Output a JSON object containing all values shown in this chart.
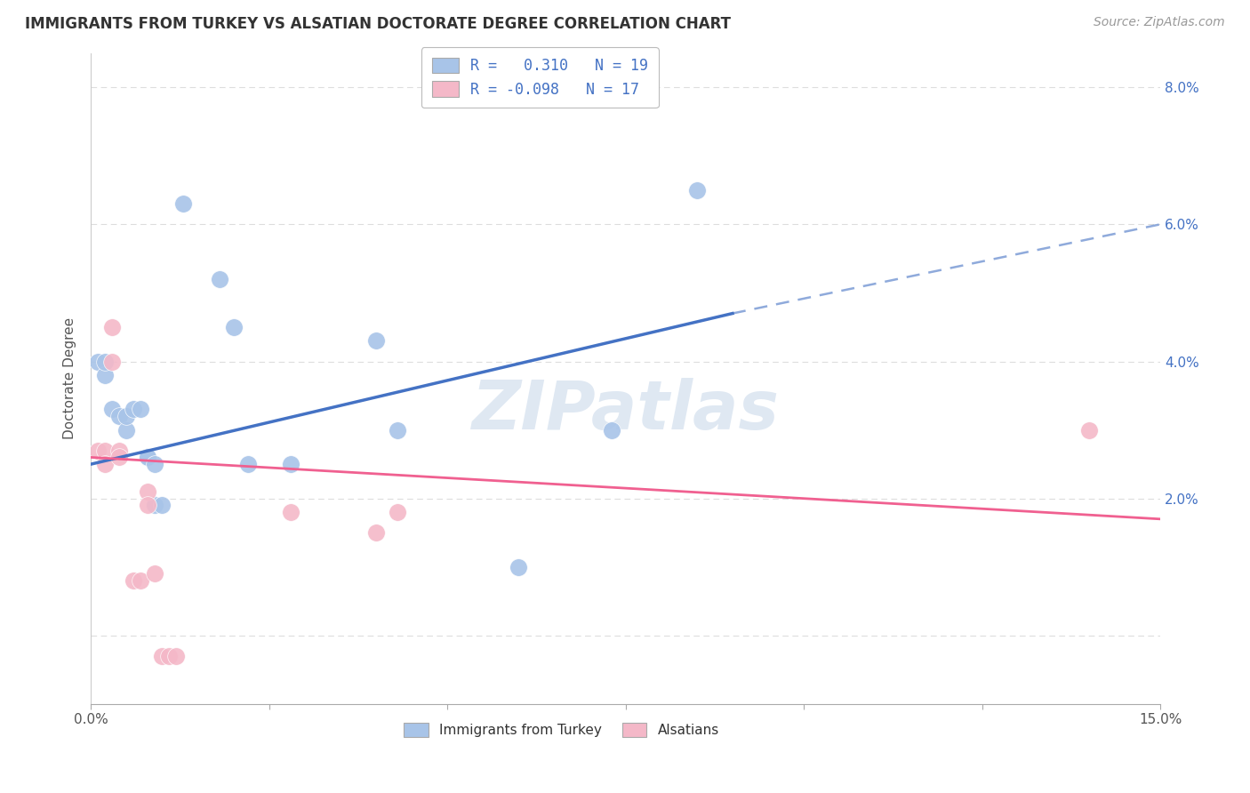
{
  "title": "IMMIGRANTS FROM TURKEY VS ALSATIAN DOCTORATE DEGREE CORRELATION CHART",
  "source": "Source: ZipAtlas.com",
  "ylabel": "Doctorate Degree",
  "xlim": [
    0.0,
    0.15
  ],
  "ylim": [
    -0.01,
    0.085
  ],
  "background_color": "#ffffff",
  "grid_color": "#dddddd",
  "blue_color": "#a8c4e8",
  "pink_color": "#f4b8c8",
  "blue_line_color": "#4472c4",
  "pink_line_color": "#f06090",
  "watermark": "ZIPatlas",
  "turkey_points": [
    [
      0.001,
      0.04
    ],
    [
      0.002,
      0.038
    ],
    [
      0.002,
      0.04
    ],
    [
      0.003,
      0.033
    ],
    [
      0.004,
      0.032
    ],
    [
      0.005,
      0.03
    ],
    [
      0.005,
      0.032
    ],
    [
      0.006,
      0.033
    ],
    [
      0.007,
      0.033
    ],
    [
      0.008,
      0.026
    ],
    [
      0.008,
      0.026
    ],
    [
      0.009,
      0.019
    ],
    [
      0.009,
      0.025
    ],
    [
      0.01,
      0.019
    ],
    [
      0.013,
      0.063
    ],
    [
      0.018,
      0.052
    ],
    [
      0.02,
      0.045
    ],
    [
      0.022,
      0.025
    ],
    [
      0.028,
      0.025
    ],
    [
      0.04,
      0.043
    ],
    [
      0.043,
      0.03
    ],
    [
      0.06,
      0.01
    ],
    [
      0.073,
      0.03
    ],
    [
      0.085,
      0.065
    ]
  ],
  "alsatian_points": [
    [
      0.001,
      0.027
    ],
    [
      0.002,
      0.027
    ],
    [
      0.002,
      0.025
    ],
    [
      0.003,
      0.045
    ],
    [
      0.003,
      0.04
    ],
    [
      0.004,
      0.027
    ],
    [
      0.004,
      0.026
    ],
    [
      0.006,
      0.008
    ],
    [
      0.007,
      0.008
    ],
    [
      0.008,
      0.021
    ],
    [
      0.008,
      0.019
    ],
    [
      0.009,
      0.009
    ],
    [
      0.01,
      -0.003
    ],
    [
      0.011,
      -0.003
    ],
    [
      0.012,
      -0.003
    ],
    [
      0.028,
      0.018
    ],
    [
      0.04,
      0.015
    ],
    [
      0.043,
      0.018
    ],
    [
      0.14,
      0.03
    ]
  ],
  "turkey_regression_solid": [
    0.0,
    0.025,
    0.09,
    0.047
  ],
  "turkey_regression_dashed": [
    0.09,
    0.047,
    0.15,
    0.06
  ],
  "alsatian_regression": [
    0.0,
    0.026,
    0.15,
    0.017
  ]
}
